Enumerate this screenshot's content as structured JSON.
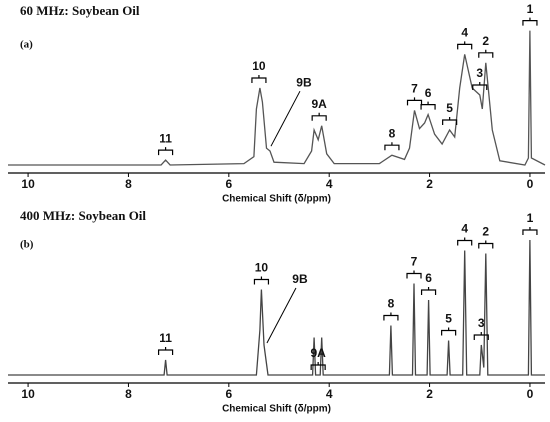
{
  "chart_data": [
    {
      "type": "line",
      "title": "60 MHz: Soybean Oil",
      "panel_label": "(a)",
      "x_label": "Chemical Shift (δ/ppm)",
      "xlim": [
        10.4,
        -0.3
      ],
      "ylim": [
        0,
        100
      ],
      "xticks": [
        10,
        8,
        6,
        4,
        2,
        0
      ],
      "color": "#555555",
      "x": [
        10.4,
        7.35,
        7.26,
        7.17,
        5.7,
        5.5,
        5.45,
        5.38,
        5.33,
        5.25,
        5.18,
        5.1,
        4.5,
        4.35,
        4.3,
        4.22,
        4.15,
        4.05,
        3.9,
        3.0,
        2.75,
        2.5,
        2.4,
        2.3,
        2.2,
        2.1,
        2.03,
        1.9,
        1.75,
        1.6,
        1.5,
        1.4,
        1.3,
        1.15,
        1.0,
        0.95,
        0.88,
        0.75,
        0.6,
        0.1,
        0.03,
        0.0,
        -0.03,
        -0.3
      ],
      "values": [
        0,
        0,
        3.5,
        0,
        1,
        6,
        40,
        55,
        45,
        12,
        10,
        2,
        1,
        10,
        25,
        18,
        28,
        8,
        1,
        1,
        7,
        4,
        12,
        39,
        26,
        30,
        36,
        22,
        15,
        25,
        20,
        55,
        79,
        55,
        50,
        40,
        73,
        25,
        3,
        0,
        5,
        96,
        5,
        0
      ],
      "annotations": [
        {
          "text": "11",
          "x": 7.26
        },
        {
          "text": "10",
          "x": 5.4
        },
        {
          "text": "9B",
          "x": 5.2
        },
        {
          "text": "9A",
          "x": 4.2
        },
        {
          "text": "8",
          "x": 2.75
        },
        {
          "text": "7",
          "x": 2.3
        },
        {
          "text": "6",
          "x": 2.03
        },
        {
          "text": "5",
          "x": 1.6
        },
        {
          "text": "4",
          "x": 1.3
        },
        {
          "text": "3",
          "x": 1.0
        },
        {
          "text": "2",
          "x": 0.88
        },
        {
          "text": "1",
          "x": 0.0
        }
      ]
    },
    {
      "type": "line",
      "title": "400 MHz: Soybean Oil",
      "panel_label": "(b)",
      "x_label": "Chemical Shift (δ/ppm)",
      "xlim": [
        10.4,
        -0.3
      ],
      "ylim": [
        0,
        100
      ],
      "xticks": [
        10,
        8,
        6,
        4,
        2,
        0
      ],
      "color": "#444444",
      "x": [
        10.4,
        7.29,
        7.26,
        7.23,
        5.45,
        5.38,
        5.35,
        5.3,
        5.28,
        5.22,
        4.33,
        4.3,
        4.27,
        4.18,
        4.15,
        4.12,
        2.8,
        2.77,
        2.74,
        2.34,
        2.31,
        2.28,
        2.05,
        2.02,
        1.99,
        1.65,
        1.62,
        1.59,
        1.34,
        1.3,
        1.26,
        1.0,
        0.97,
        0.92,
        0.88,
        0.84,
        0.03,
        0.0,
        -0.03,
        -0.3
      ],
      "values": [
        0,
        0,
        10,
        0,
        0,
        30,
        57,
        20,
        15,
        0,
        0,
        25,
        0,
        0,
        25,
        0,
        0,
        33,
        0,
        0,
        61,
        0,
        0,
        50,
        0,
        0,
        23,
        0,
        0,
        83,
        0,
        0,
        20,
        5,
        81,
        0,
        0,
        90,
        0,
        0
      ],
      "annotations": [
        {
          "text": "11",
          "x": 7.26
        },
        {
          "text": "10",
          "x": 5.35
        },
        {
          "text": "9B",
          "x": 5.28
        },
        {
          "text": "9A",
          "x": 4.22
        },
        {
          "text": "8",
          "x": 2.77
        },
        {
          "text": "7",
          "x": 2.31
        },
        {
          "text": "6",
          "x": 2.02
        },
        {
          "text": "5",
          "x": 1.62
        },
        {
          "text": "4",
          "x": 1.3
        },
        {
          "text": "3",
          "x": 0.97
        },
        {
          "text": "2",
          "x": 0.88
        },
        {
          "text": "1",
          "x": 0.0
        }
      ]
    }
  ]
}
